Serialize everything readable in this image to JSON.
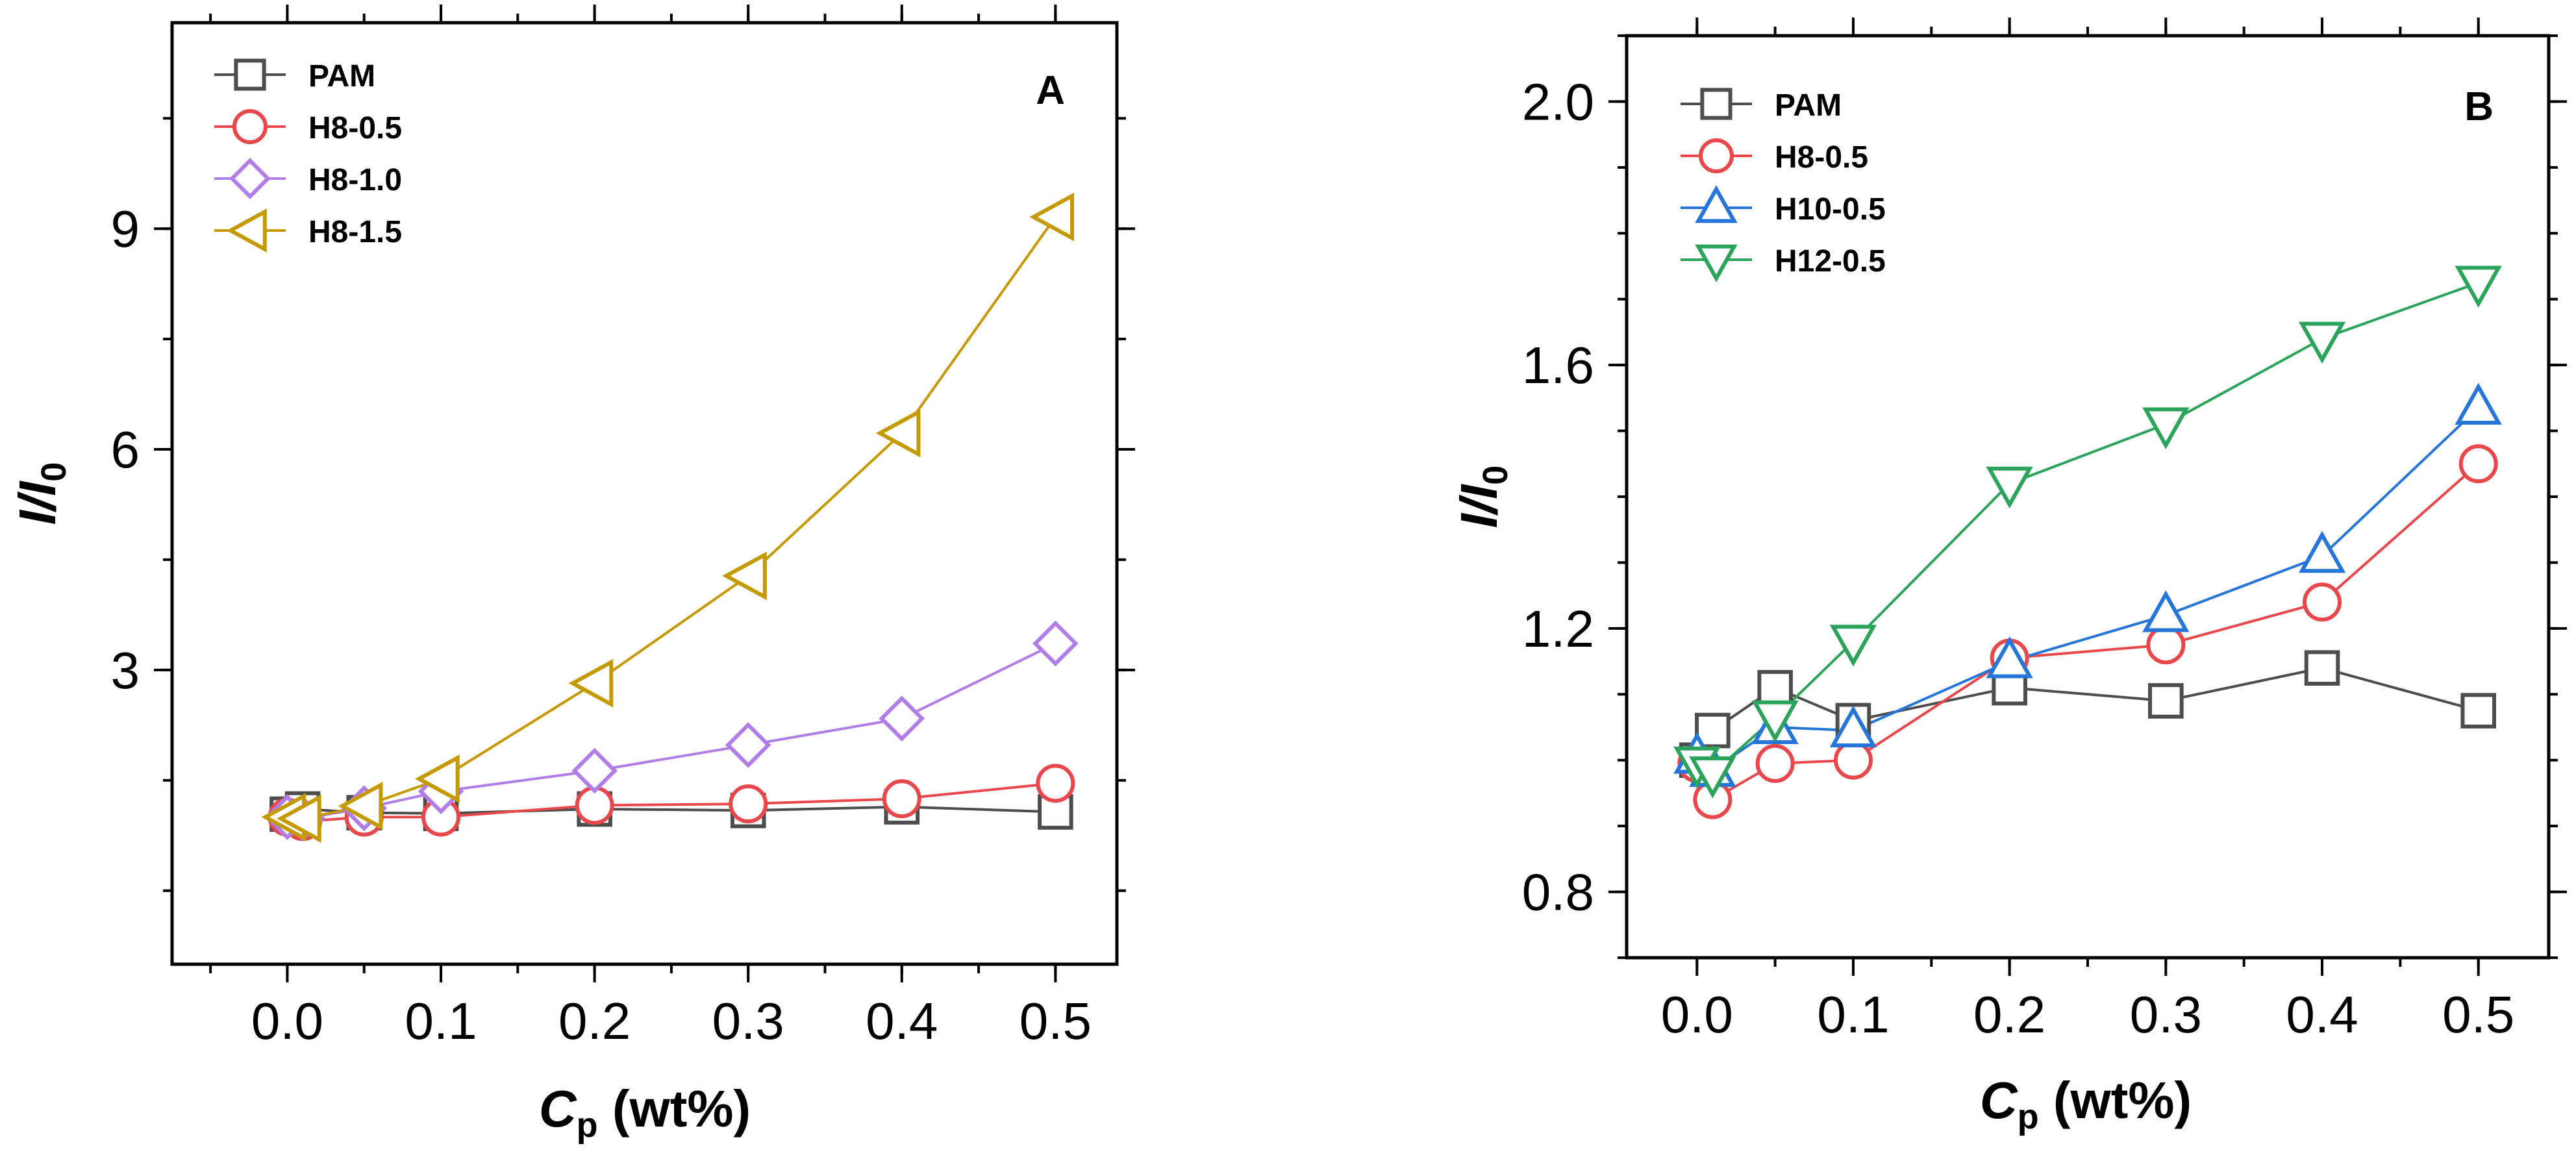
{
  "chart_data": [
    {
      "type": "line",
      "panel_label": "A",
      "xlabel_main": "C",
      "xlabel_sub": "p",
      "xlabel_unit": " (wt%)",
      "ylabel_main": "I/I",
      "ylabel_sub": "0",
      "xlim": [
        -0.075,
        0.54
      ],
      "ylim": [
        -1.0,
        11.8
      ],
      "xticks": [
        0.0,
        0.1,
        0.2,
        0.3,
        0.4,
        0.5
      ],
      "xtick_labels": [
        "0.0",
        "0.1",
        "0.2",
        "0.3",
        "0.4",
        "0.5"
      ],
      "yticks": [
        3,
        6,
        9
      ],
      "ytick_labels": [
        "3",
        "6",
        "9"
      ],
      "legend_position": "top-left",
      "series": [
        {
          "name": "PAM",
          "color": "#4d4d4d",
          "marker": "square",
          "x": [
            0.0,
            0.01,
            0.05,
            0.1,
            0.2,
            0.3,
            0.4,
            0.5
          ],
          "y": [
            1.04,
            1.11,
            1.06,
            1.05,
            1.11,
            1.09,
            1.14,
            1.07
          ]
        },
        {
          "name": "H8-0.5",
          "color": "#e8474c",
          "marker": "circle",
          "x": [
            0.0,
            0.01,
            0.05,
            0.1,
            0.2,
            0.3,
            0.4,
            0.5
          ],
          "y": [
            1.0,
            0.94,
            1.0,
            1.0,
            1.16,
            1.18,
            1.25,
            1.46
          ]
        },
        {
          "name": "H8-1.0",
          "color": "#b07ee6",
          "marker": "diamond",
          "x": [
            0.0,
            0.01,
            0.05,
            0.1,
            0.2,
            0.3,
            0.4,
            0.5
          ],
          "y": [
            1.0,
            0.98,
            1.12,
            1.35,
            1.63,
            1.98,
            2.34,
            3.36
          ]
        },
        {
          "name": "H8-1.5",
          "color": "#c49a00",
          "marker": "triangle-left",
          "x": [
            0.0,
            0.01,
            0.05,
            0.1,
            0.2,
            0.3,
            0.4,
            0.5
          ],
          "y": [
            1.0,
            0.98,
            1.15,
            1.52,
            2.82,
            4.28,
            6.22,
            9.16
          ]
        }
      ]
    },
    {
      "type": "line",
      "panel_label": "B",
      "xlabel_main": "C",
      "xlabel_sub": "p",
      "xlabel_unit": " (wt%)",
      "ylabel_main": "I/I",
      "ylabel_sub": "0",
      "xlim": [
        -0.045,
        0.545
      ],
      "ylim": [
        0.7,
        2.1
      ],
      "xticks": [
        0.0,
        0.1,
        0.2,
        0.3,
        0.4,
        0.5
      ],
      "xtick_labels": [
        "0.0",
        "0.1",
        "0.2",
        "0.3",
        "0.4",
        "0.5"
      ],
      "yticks": [
        0.8,
        1.2,
        1.6,
        2.0
      ],
      "ytick_labels": [
        "0.8",
        "1.2",
        "1.6",
        "2.0"
      ],
      "legend_position": "top-left",
      "series": [
        {
          "name": "PAM",
          "color": "#4d4d4d",
          "marker": "square",
          "x": [
            0.0,
            0.01,
            0.05,
            0.1,
            0.2,
            0.3,
            0.4,
            0.5
          ],
          "y": [
            1.0,
            1.045,
            1.11,
            1.06,
            1.11,
            1.09,
            1.14,
            1.075
          ]
        },
        {
          "name": "H8-0.5",
          "color": "#e8474c",
          "marker": "circle",
          "x": [
            0.0,
            0.01,
            0.05,
            0.1,
            0.2,
            0.3,
            0.4,
            0.5
          ],
          "y": [
            0.995,
            0.94,
            0.995,
            1.0,
            1.155,
            1.175,
            1.24,
            1.45
          ]
        },
        {
          "name": "H10-0.5",
          "color": "#2676d9",
          "marker": "triangle-up",
          "x": [
            0.0,
            0.01,
            0.05,
            0.1,
            0.2,
            0.3,
            0.4,
            0.5
          ],
          "y": [
            1.005,
            0.985,
            1.05,
            1.045,
            1.15,
            1.22,
            1.31,
            1.535
          ]
        },
        {
          "name": "H12-0.5",
          "color": "#2ba35a",
          "marker": "triangle-down",
          "x": [
            0.0,
            0.01,
            0.05,
            0.1,
            0.2,
            0.3,
            0.4,
            0.5
          ],
          "y": [
            0.995,
            0.98,
            1.065,
            1.18,
            1.42,
            1.51,
            1.64,
            1.725
          ]
        }
      ]
    }
  ]
}
